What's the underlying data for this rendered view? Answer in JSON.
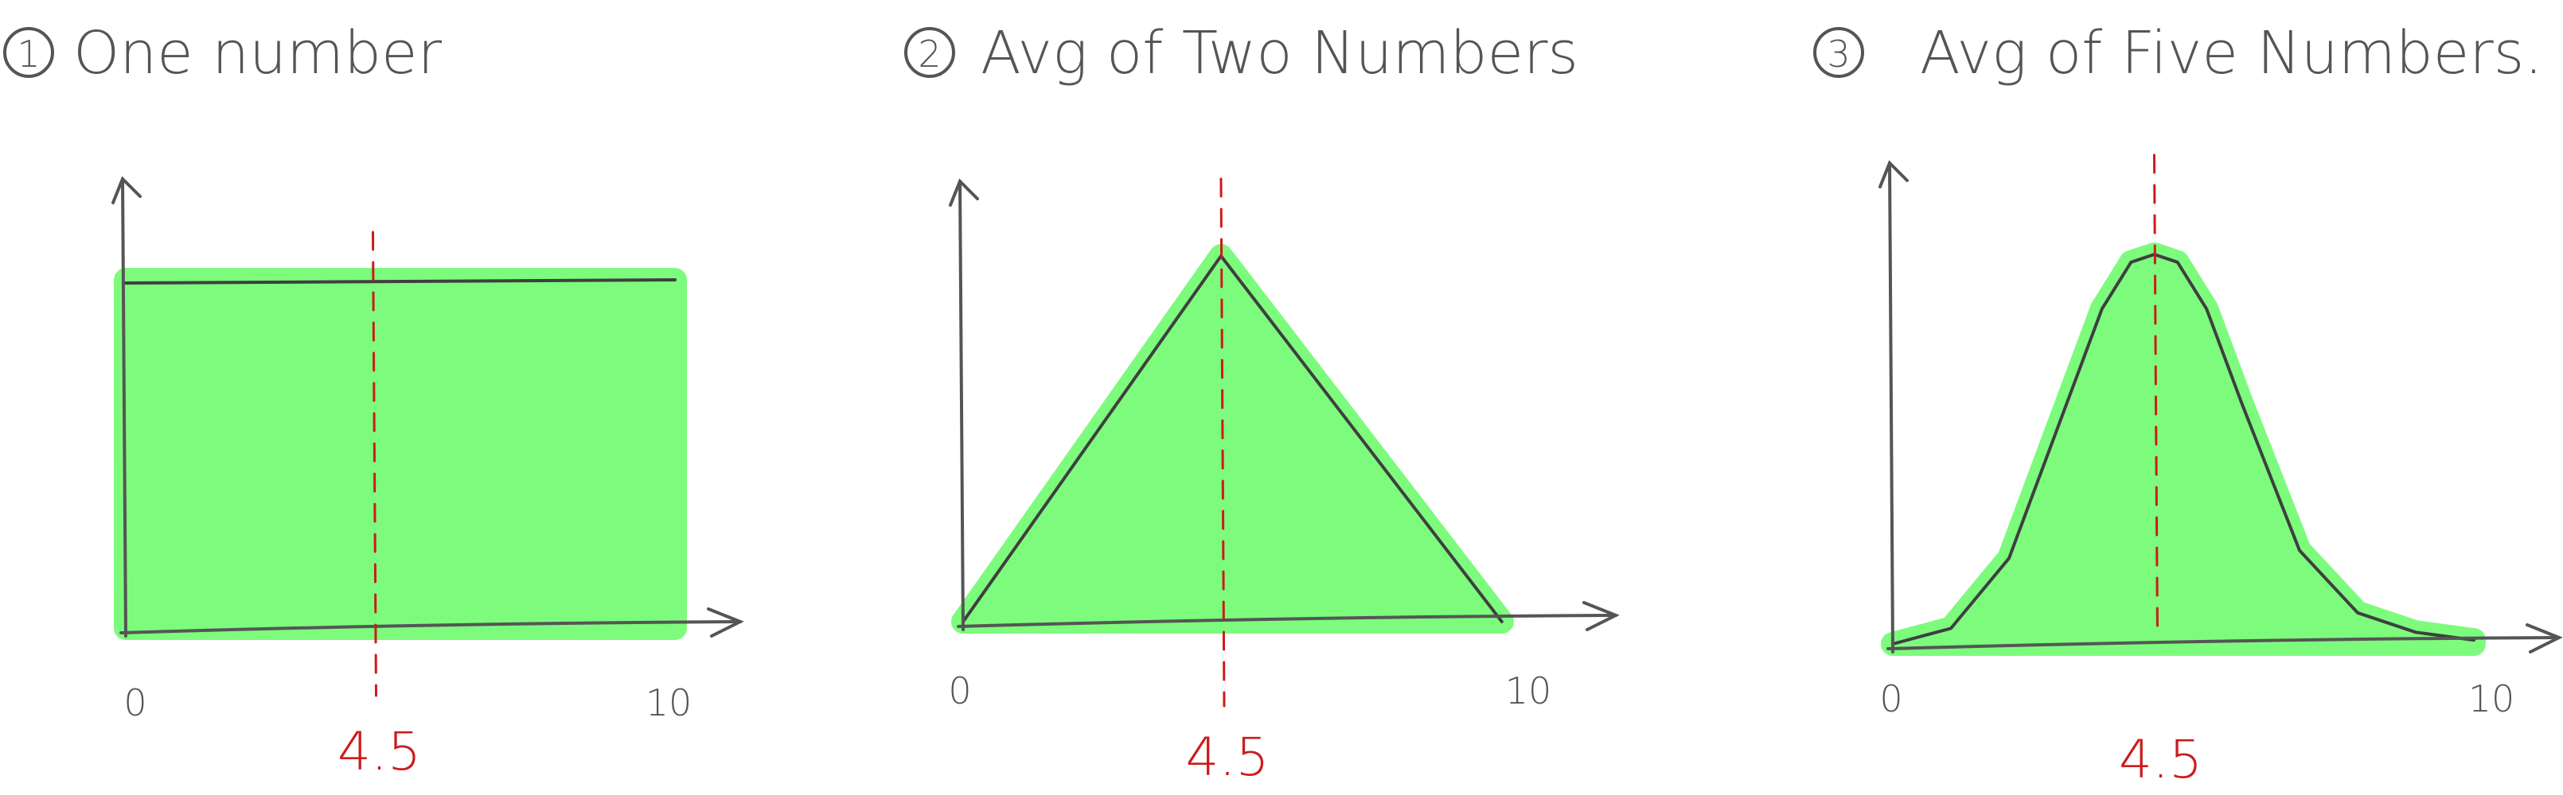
{
  "chart_data": [
    {
      "type": "area",
      "title": "One number",
      "panel_number": "1",
      "x_tick_labels": [
        "0",
        "10"
      ],
      "xlim": [
        0,
        10
      ],
      "ylim": [
        0,
        1
      ],
      "x": [
        0,
        10
      ],
      "y": [
        1,
        1
      ],
      "mean_label": "4.5",
      "mean_x": 4.5,
      "fill_color": "#7dfb7d",
      "curve_color": "#3f3f3f",
      "mean_color": "#cc1b1b"
    },
    {
      "type": "area",
      "title": "Avg of Two Numbers",
      "panel_number": "2",
      "x_tick_labels": [
        "0",
        "10"
      ],
      "xlim": [
        0,
        10
      ],
      "ylim": [
        0,
        1
      ],
      "x": [
        0,
        4.5,
        9.4
      ],
      "y": [
        0,
        1,
        0
      ],
      "mean_label": "4.5",
      "mean_x": 4.5,
      "fill_color": "#7dfb7d",
      "curve_color": "#3f3f3f",
      "mean_color": "#cc1b1b"
    },
    {
      "type": "area",
      "title": "Avg of Five Numbers.",
      "panel_number": "3",
      "x_tick_labels": [
        "0",
        "10"
      ],
      "xlim": [
        0,
        10
      ],
      "ylim": [
        0,
        1
      ],
      "x": [
        0,
        1.0,
        2.0,
        3.0,
        3.6,
        4.1,
        4.5,
        4.9,
        5.4,
        6.0,
        7.0,
        8.0,
        9.0,
        10.0
      ],
      "y": [
        0,
        0.04,
        0.22,
        0.62,
        0.86,
        0.98,
        1.0,
        0.98,
        0.86,
        0.62,
        0.24,
        0.08,
        0.03,
        0.01
      ],
      "mean_label": "4.5",
      "mean_x": 4.5,
      "fill_color": "#7dfb7d",
      "curve_color": "#3f3f3f",
      "mean_color": "#cc1b1b"
    }
  ]
}
